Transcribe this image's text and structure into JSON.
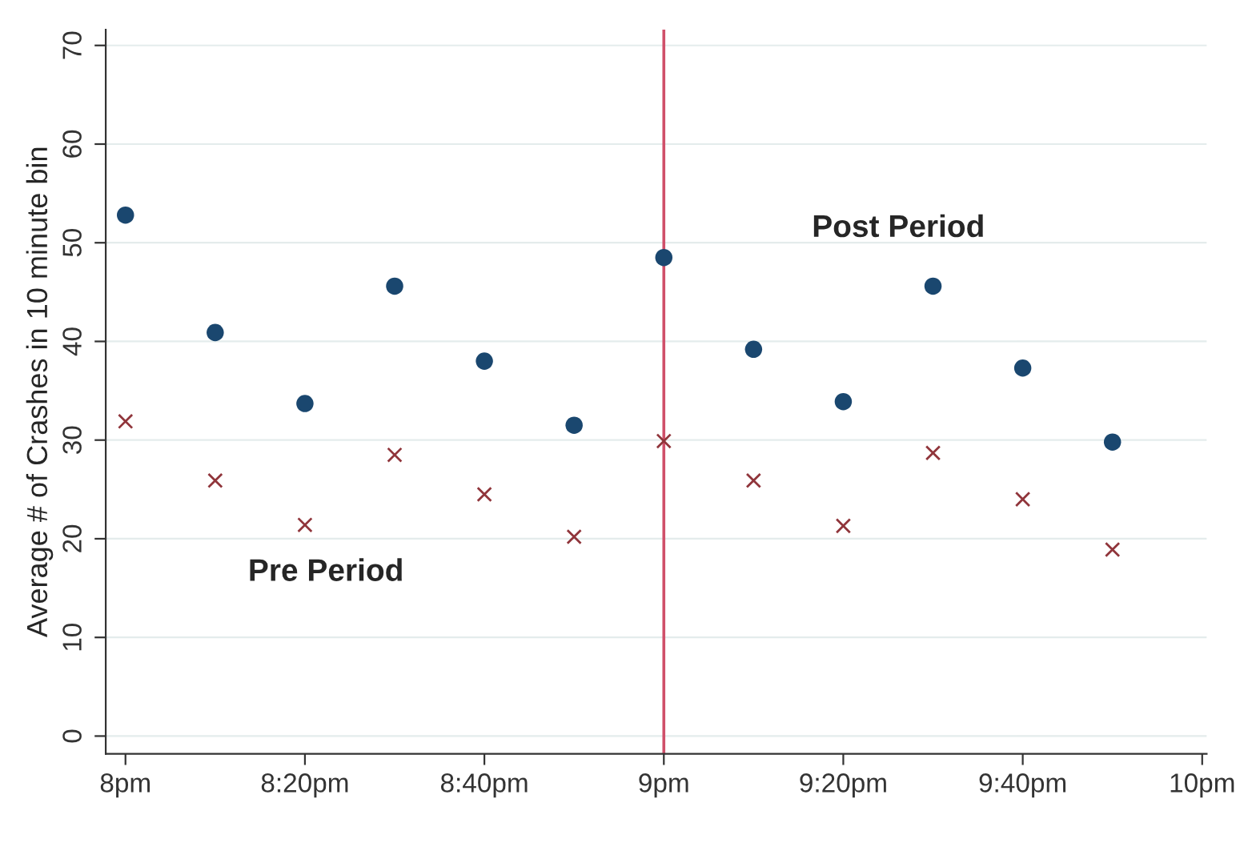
{
  "chart_data": {
    "type": "scatter",
    "ylabel": "Average # of Crashes in 10 minute bin",
    "categories": [
      "8pm",
      null,
      "8:20pm",
      null,
      "8:40pm",
      null,
      "9pm",
      null,
      "9:20pm",
      null,
      "9:40pm",
      null,
      "10pm"
    ],
    "series": [
      {
        "color": "#1a476f",
        "marker": "circle",
        "values": [
          52.8,
          40.9,
          33.7,
          45.6,
          38.0,
          31.5,
          48.5,
          39.2,
          33.9,
          45.6,
          37.3,
          29.8,
          null
        ]
      },
      {
        "color": "#90353b",
        "marker": "cross",
        "values": [
          31.9,
          25.9,
          21.4,
          28.5,
          24.5,
          20.2,
          29.9,
          25.9,
          21.3,
          28.7,
          24.0,
          18.9,
          null
        ]
      }
    ],
    "ylim": [
      -1.8,
      71.6
    ],
    "yticks": [
      0,
      10,
      20,
      30,
      40,
      50,
      60,
      70
    ],
    "grid": "y",
    "ref_lines": [
      {
        "axis": "x",
        "value": "9pm",
        "color": "#d0506a"
      }
    ],
    "annotations": [
      "Pre Period",
      "Post Period"
    ]
  }
}
